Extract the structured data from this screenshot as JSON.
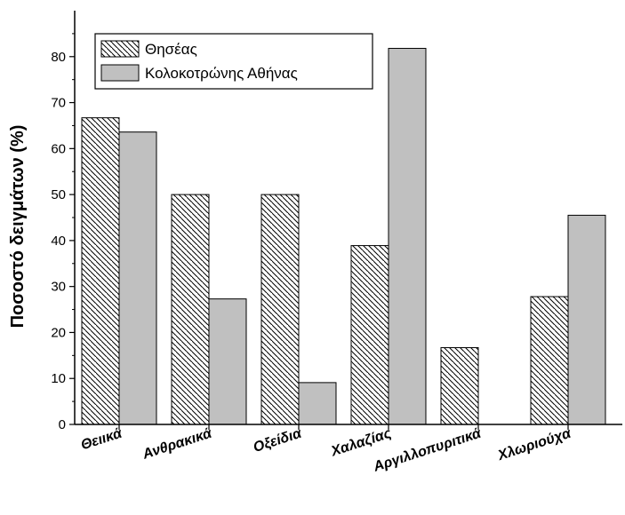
{
  "chart_data": {
    "type": "bar",
    "title": "",
    "xlabel": "",
    "ylabel": "Ποσοστό δειγμάτων (%)",
    "ylim": [
      0,
      90
    ],
    "yticks": [
      0,
      10,
      20,
      30,
      40,
      50,
      60,
      70,
      80
    ],
    "categories": [
      "Θειικά",
      "Ανθρακικά",
      "Οξείδια",
      "Χαλαζίας",
      "Αργιλλοπυριτικά",
      "Χλωριούχα"
    ],
    "series": [
      {
        "name": "Θησέας",
        "values": [
          66.7,
          50.0,
          50.0,
          38.9,
          16.7,
          27.8
        ],
        "fill": "hatch"
      },
      {
        "name": "Κολοκοτρώνης Αθήνας",
        "values": [
          63.6,
          27.3,
          9.1,
          81.8,
          0,
          45.5
        ],
        "fill": "#c0c0c0"
      }
    ],
    "legend": "top-left",
    "grid": false
  }
}
